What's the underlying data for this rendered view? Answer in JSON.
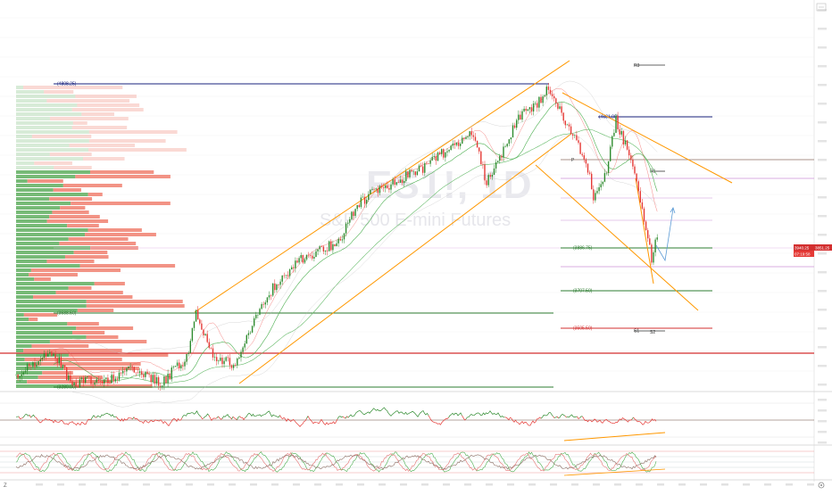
{
  "watermark": {
    "symbol": "ES1!, 1D",
    "description": "S&P 500 E-mini Futures"
  },
  "levels": {
    "high": "(4808.25)",
    "upper_mid": "(4631.00)",
    "current_support": "(3886.75)",
    "low_support_1": "(3707.50)",
    "low_support_2": "(3505.50)",
    "left_support": "(3588.50)",
    "bottom_left": "(3280.00)"
  },
  "pivot_labels": {
    "r3": "R3",
    "r1": "R1",
    "p": "P",
    "s1": "S1",
    "s2": "S2"
  },
  "price_badges": {
    "last_price": "3940.25",
    "last_price_alt": "3851.25",
    "countdown": "07:19:58"
  },
  "bottom_left_marker": "Z",
  "colors": {
    "up": "#2e8b2e",
    "down": "#e53935",
    "channel": "#ff9800",
    "navy_level": "#1a237e",
    "green_level": "#2e7d32",
    "red_level": "#d32f2f",
    "purple_level": "#ab47bc",
    "volume_profile_up": "#5fae5f",
    "volume_profile_down": "#f08070"
  },
  "icons": {
    "settings": "gear-icon",
    "scale": "scale-icon"
  }
}
